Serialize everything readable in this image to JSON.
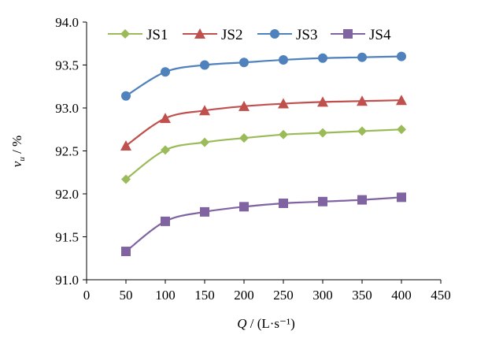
{
  "chart_data": {
    "type": "line",
    "title": "",
    "xlabel_italic": "Q",
    "xlabel_rest": " / (L·s⁻¹)",
    "ylabel_italic": "v",
    "ylabel_sub": "u",
    "ylabel_rest": " / %",
    "xlim": [
      0,
      450
    ],
    "ylim": [
      91.0,
      94.0
    ],
    "x_ticks": [
      "0",
      "50",
      "100",
      "150",
      "200",
      "250",
      "300",
      "350",
      "400",
      "450"
    ],
    "y_ticks": [
      "91.0",
      "91.5",
      "92.0",
      "92.5",
      "93.0",
      "93.5",
      "94.0"
    ],
    "grid": false,
    "legend_position": "top",
    "x": [
      50,
      100,
      150,
      200,
      250,
      300,
      350,
      400
    ],
    "series": [
      {
        "name": "JS1",
        "marker": "diamond",
        "color": "#9BBB59",
        "values": [
          92.17,
          92.51,
          92.6,
          92.65,
          92.69,
          92.71,
          92.73,
          92.75
        ]
      },
      {
        "name": "JS2",
        "marker": "triangle",
        "color": "#C0504D",
        "values": [
          92.56,
          92.88,
          92.97,
          93.02,
          93.05,
          93.07,
          93.08,
          93.09
        ]
      },
      {
        "name": "JS3",
        "marker": "circle",
        "color": "#4F81BD",
        "values": [
          93.14,
          93.42,
          93.5,
          93.53,
          93.56,
          93.58,
          93.59,
          93.6
        ]
      },
      {
        "name": "JS4",
        "marker": "square",
        "color": "#8064A2",
        "values": [
          91.33,
          91.68,
          91.79,
          91.85,
          91.89,
          91.91,
          91.93,
          91.96
        ]
      }
    ]
  }
}
